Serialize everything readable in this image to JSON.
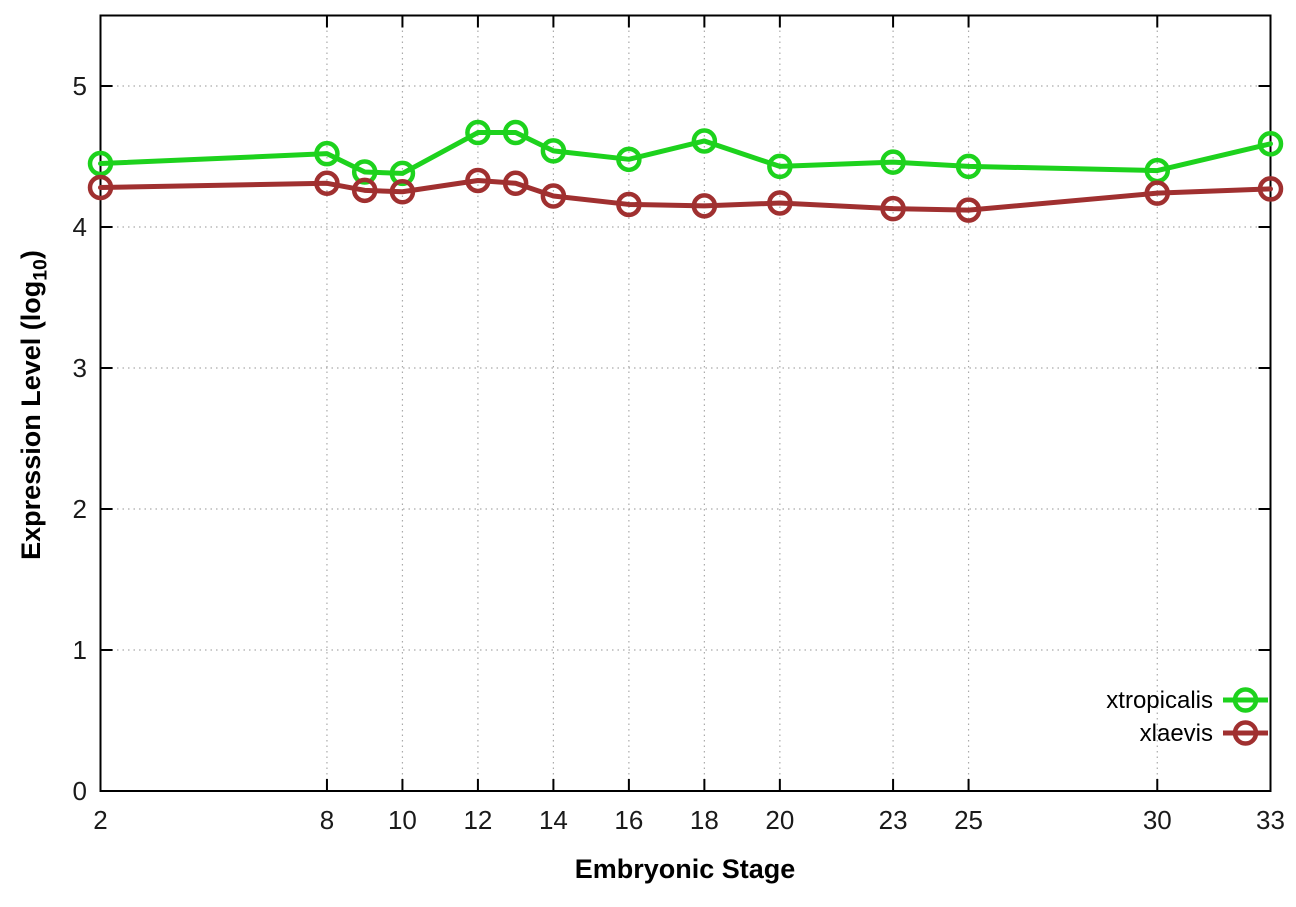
{
  "chart_data": {
    "type": "line",
    "title": "",
    "xlabel": "Embryonic Stage",
    "ylabel": {
      "pre": "Expression Level (log",
      "sub": "10",
      "post": ")"
    },
    "x": [
      2,
      8,
      9,
      10,
      12,
      13,
      14,
      16,
      18,
      20,
      23,
      25,
      30,
      33
    ],
    "series": [
      {
        "name": "xtropicalis",
        "color": "#1dd21d",
        "values": [
          4.45,
          4.52,
          4.39,
          4.38,
          4.67,
          4.67,
          4.54,
          4.48,
          4.61,
          4.43,
          4.46,
          4.43,
          4.4,
          4.59
        ]
      },
      {
        "name": "xlaevis",
        "color": "#a03030",
        "values": [
          4.28,
          4.31,
          4.26,
          4.25,
          4.33,
          4.31,
          4.22,
          4.16,
          4.15,
          4.17,
          4.13,
          4.12,
          4.24,
          4.27
        ]
      }
    ],
    "xticks": [
      2,
      8,
      10,
      12,
      14,
      16,
      18,
      20,
      23,
      25,
      30,
      33
    ],
    "yticks": [
      0,
      1,
      2,
      3,
      4,
      5
    ],
    "xlim": [
      2,
      33
    ],
    "ylim": [
      0,
      5.5
    ],
    "grid": true,
    "legend_position": "bottom-right",
    "marker": "open-circle",
    "line_style": "solid"
  },
  "style": {
    "background": "#ffffff",
    "border_color": "#000000",
    "grid_color": "#aaaaaa",
    "tick_label_color": "#1a1a1a",
    "legend_text_color": "#000000"
  }
}
